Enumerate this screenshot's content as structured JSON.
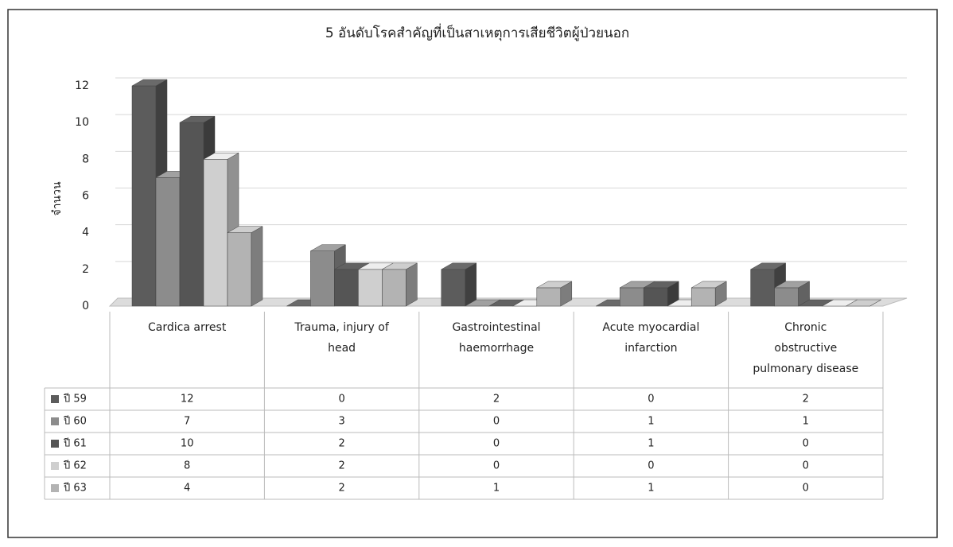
{
  "chart_data": {
    "type": "bar3d",
    "title": "5 อันดับโรคสำคัญที่เป็นสาเหตุการเสียชีวิตผู้ป่วยนอก",
    "y_label": "จำนวน",
    "categories": [
      "Cardica arrest",
      "Trauma, injury of head",
      "Gastrointestinal haemorrhage",
      "Acute myocardial infarction",
      "Chronic obstructive pulmonary disease"
    ],
    "series": [
      {
        "name": "ปี 59",
        "color": "#5c5c5c",
        "values": [
          12,
          0,
          2,
          0,
          2
        ]
      },
      {
        "name": "ปี 60",
        "color": "#8c8c8c",
        "values": [
          7,
          3,
          0,
          1,
          1
        ]
      },
      {
        "name": "ปี 61",
        "color": "#555555",
        "values": [
          10,
          2,
          0,
          1,
          0
        ]
      },
      {
        "name": "ปี 62",
        "color": "#cfcfcf",
        "values": [
          8,
          2,
          0,
          0,
          0
        ]
      },
      {
        "name": "ปี 63",
        "color": "#b3b3b3",
        "values": [
          4,
          2,
          1,
          1,
          0
        ]
      }
    ],
    "ylim": [
      0,
      12
    ],
    "yticks": [
      0,
      2,
      4,
      6,
      8,
      10,
      12
    ],
    "grid": true
  }
}
